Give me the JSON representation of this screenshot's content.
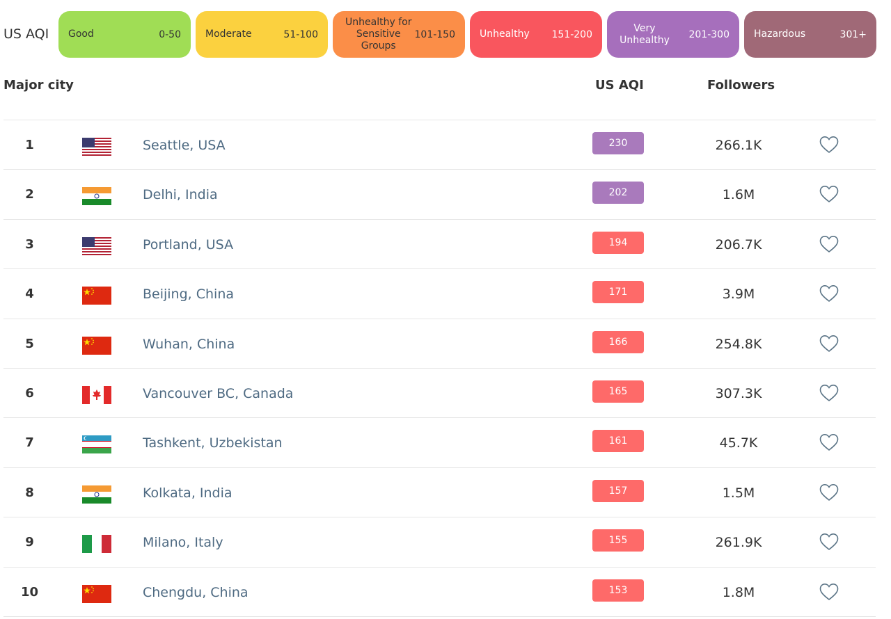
{
  "legend": {
    "title": "US AQI",
    "items": [
      {
        "label": "Good",
        "range": "0-50",
        "color": "#a0dd55"
      },
      {
        "label": "Moderate",
        "range": "51-100",
        "color": "#fbd13f"
      },
      {
        "label": "Unhealthy for Sensitive Groups",
        "range": "101-150",
        "color": "#fb8e48"
      },
      {
        "label": "Unhealthy",
        "range": "151-200",
        "color": "#f9565e"
      },
      {
        "label": "Very Unhealthy",
        "range": "201-300",
        "color": "#a66fbc"
      },
      {
        "label": "Hazardous",
        "range": "301+",
        "color": "#a06977"
      }
    ]
  },
  "table": {
    "headers": {
      "city": "Major city",
      "aqi": "US AQI",
      "followers": "Followers"
    },
    "rows": [
      {
        "rank": "1",
        "flag": "usa-flag-icon",
        "city": "Seattle, USA",
        "aqi": "230",
        "aqi_color": "#a97abc",
        "followers": "266.1K"
      },
      {
        "rank": "2",
        "flag": "india-flag-icon",
        "city": "Delhi, India",
        "aqi": "202",
        "aqi_color": "#a97abc",
        "followers": "1.6M"
      },
      {
        "rank": "3",
        "flag": "usa-flag-icon",
        "city": "Portland, USA",
        "aqi": "194",
        "aqi_color": "#fe6a69",
        "followers": "206.7K"
      },
      {
        "rank": "4",
        "flag": "china-flag-icon",
        "city": "Beijing, China",
        "aqi": "171",
        "aqi_color": "#fe6a69",
        "followers": "3.9M"
      },
      {
        "rank": "5",
        "flag": "china-flag-icon",
        "city": "Wuhan, China",
        "aqi": "166",
        "aqi_color": "#fe6a69",
        "followers": "254.8K"
      },
      {
        "rank": "6",
        "flag": "canada-flag-icon",
        "city": "Vancouver BC, Canada",
        "aqi": "165",
        "aqi_color": "#fe6a69",
        "followers": "307.3K"
      },
      {
        "rank": "7",
        "flag": "uzbekistan-flag-icon",
        "city": "Tashkent, Uzbekistan",
        "aqi": "161",
        "aqi_color": "#fe6a69",
        "followers": "45.7K"
      },
      {
        "rank": "8",
        "flag": "india-flag-icon",
        "city": "Kolkata, India",
        "aqi": "157",
        "aqi_color": "#fe6a69",
        "followers": "1.5M"
      },
      {
        "rank": "9",
        "flag": "italy-flag-icon",
        "city": "Milano, Italy",
        "aqi": "155",
        "aqi_color": "#fe6a69",
        "followers": "261.9K"
      },
      {
        "rank": "10",
        "flag": "china-flag-icon",
        "city": "Chengdu, China",
        "aqi": "153",
        "aqi_color": "#fe6a69",
        "followers": "1.8M"
      }
    ]
  },
  "icons": {
    "follow": "heart-icon"
  }
}
